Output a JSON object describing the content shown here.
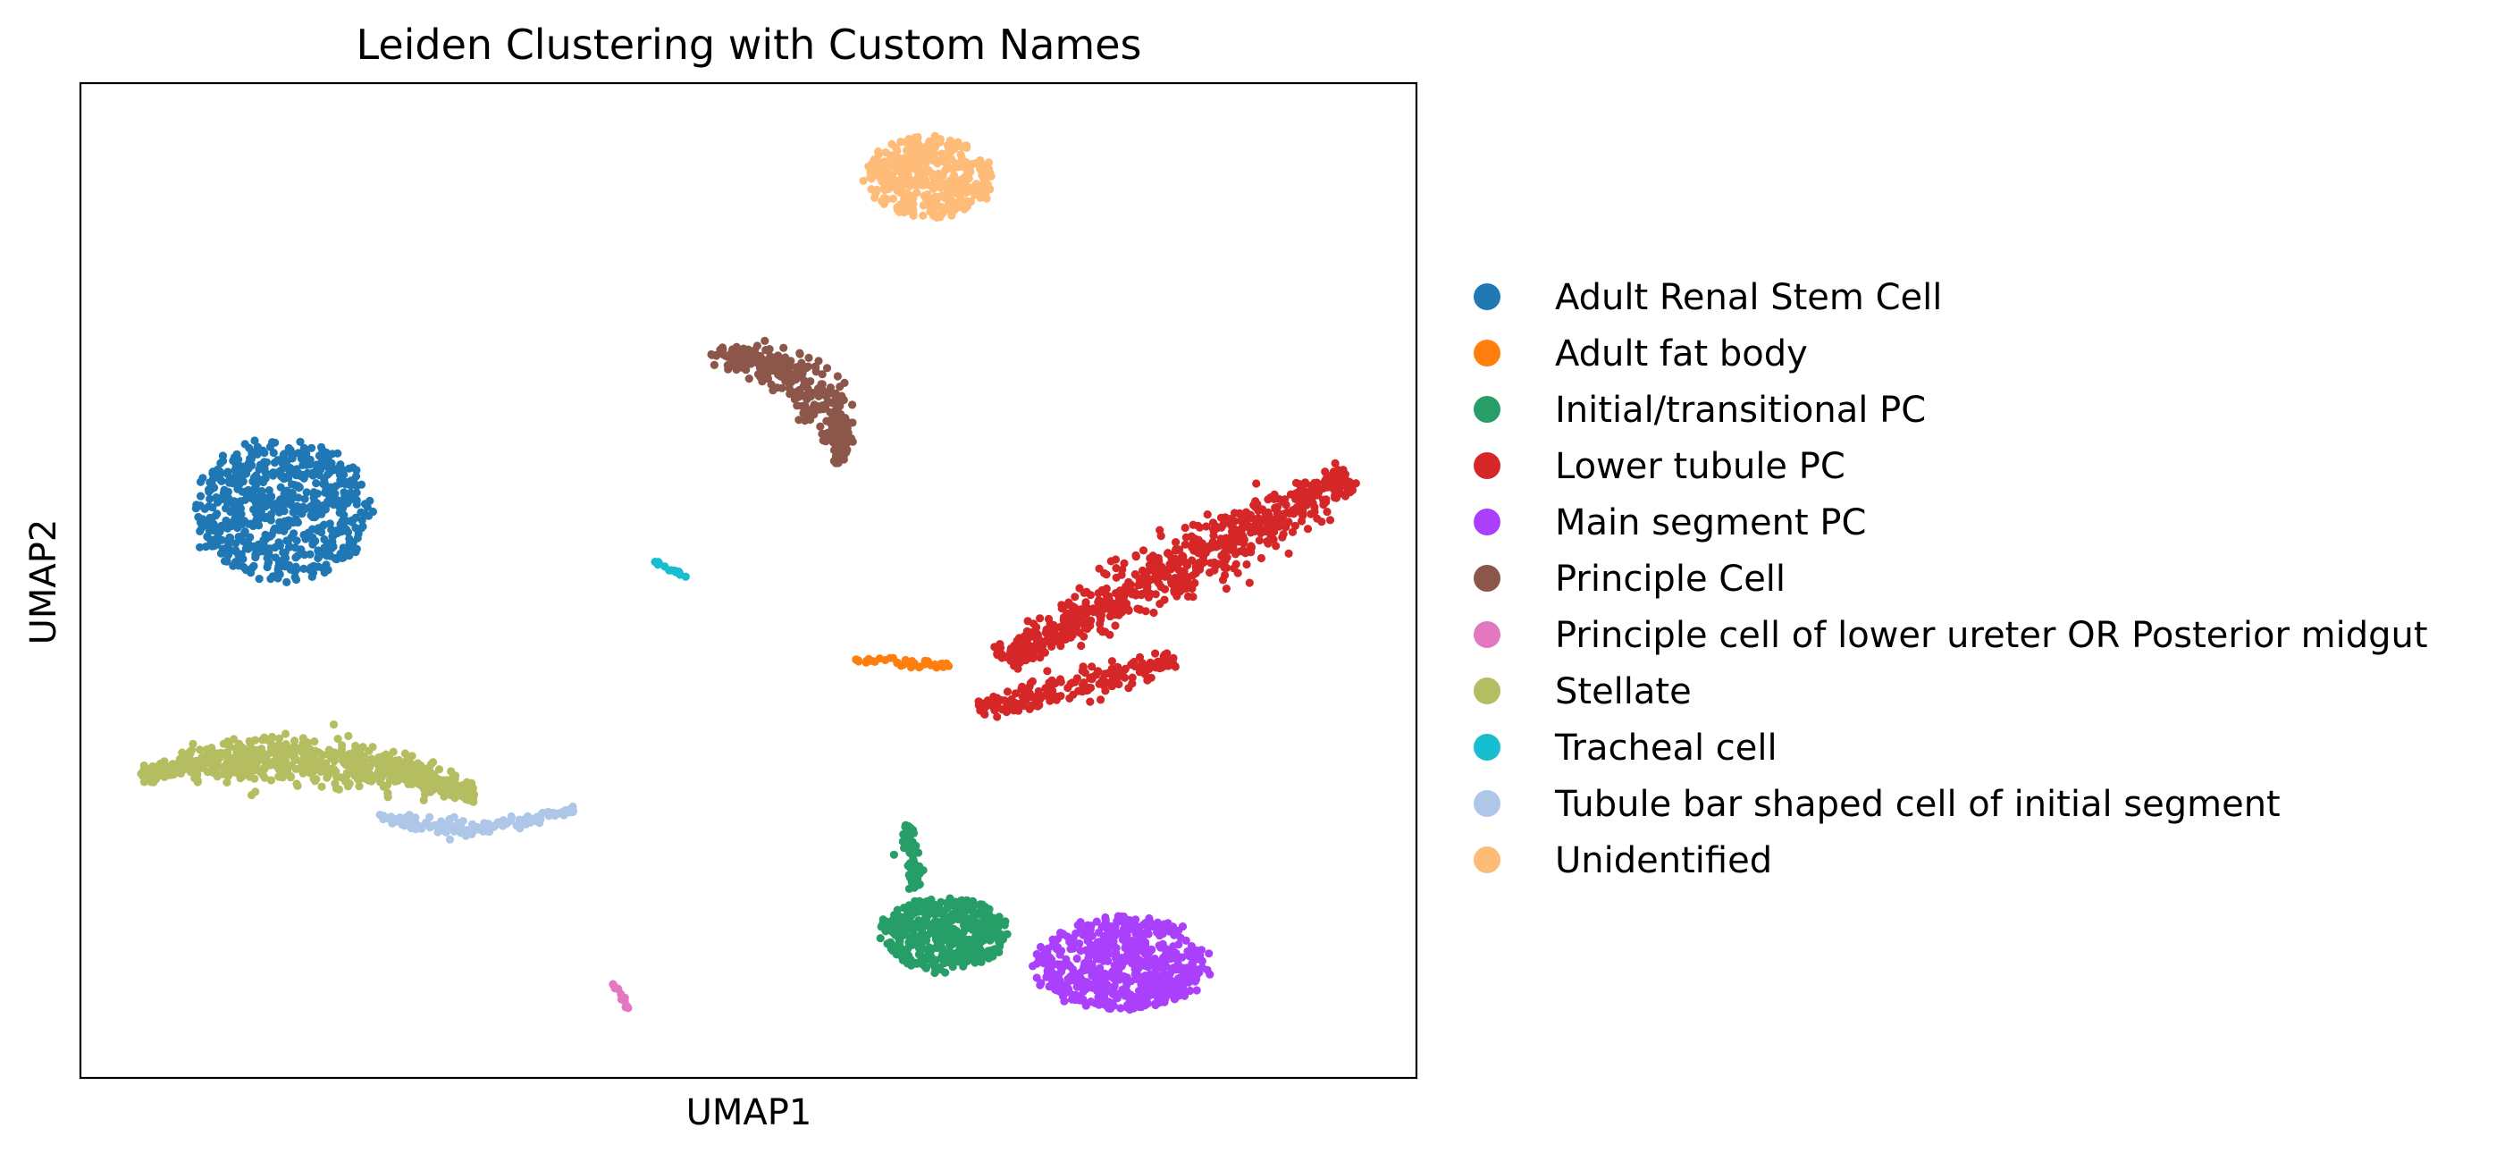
{
  "chart_data": {
    "type": "scatter",
    "title": "Leiden Clustering with Custom Names",
    "xlabel": "UMAP1",
    "ylabel": "UMAP2",
    "xlim": [
      0,
      100
    ],
    "ylim": [
      0,
      100
    ],
    "ticks_shown": false,
    "grid": false,
    "legend_position": "outside right",
    "series": [
      {
        "name": "Adult Renal Stem Cell",
        "color": "#1f77b4",
        "clusters": [
          {
            "shape": "blob",
            "cx": 15,
            "cy": 57,
            "rx": 7,
            "ry": 7.5,
            "n": 650
          }
        ]
      },
      {
        "name": "Adult fat body",
        "color": "#ff7f0e",
        "clusters": [
          {
            "shape": "line",
            "x0": 58,
            "y0": 42,
            "x1": 65,
            "y1": 41.5,
            "spread": 0.5,
            "n": 45
          }
        ]
      },
      {
        "name": "Initial/transitional PC",
        "color": "#279e68",
        "clusters": [
          {
            "shape": "blob",
            "cx": 64.5,
            "cy": 14.5,
            "rx": 5,
            "ry": 4,
            "n": 430
          },
          {
            "shape": "line",
            "x0": 62.5,
            "y0": 19,
            "x1": 62,
            "y1": 25.5,
            "spread": 0.7,
            "n": 70
          }
        ]
      },
      {
        "name": "Lower tubule PC",
        "color": "#d62728",
        "clusters": [
          {
            "shape": "line",
            "x0": 69,
            "y0": 42,
            "x1": 95,
            "y1": 60.5,
            "spread": 2.6,
            "n": 750
          },
          {
            "shape": "line",
            "x0": 67,
            "y0": 37,
            "x1": 82,
            "y1": 42,
            "spread": 1.6,
            "n": 200
          }
        ]
      },
      {
        "name": "Main segment PC",
        "color": "#aa40fc",
        "clusters": [
          {
            "shape": "blob",
            "cx": 78,
            "cy": 11.5,
            "rx": 7,
            "ry": 5,
            "n": 620
          }
        ]
      },
      {
        "name": "Principle Cell",
        "color": "#8c564b",
        "clusters": [
          {
            "shape": "arc",
            "x0": 47.5,
            "y0": 73,
            "x1": 57,
            "y1": 62,
            "bend": 3,
            "spread": 2.1,
            "n": 330
          }
        ]
      },
      {
        "name": "Principle cell of lower ureter OR Posterior midgut",
        "color": "#e377c2",
        "clusters": [
          {
            "shape": "line",
            "x0": 40,
            "y0": 9.5,
            "x1": 41,
            "y1": 7,
            "spread": 0.3,
            "n": 14
          }
        ]
      },
      {
        "name": "Stellate",
        "color": "#b5bd61",
        "clusters": [
          {
            "shape": "arc",
            "x0": 4.5,
            "y0": 30.5,
            "x1": 29.5,
            "y1": 28.5,
            "bend": 2.5,
            "spread": 2.1,
            "n": 720
          }
        ]
      },
      {
        "name": "Tracheal cell",
        "color": "#17becf",
        "clusters": [
          {
            "shape": "line",
            "x0": 43,
            "y0": 52,
            "x1": 45.3,
            "y1": 50.3,
            "spread": 0.25,
            "n": 16
          }
        ]
      },
      {
        "name": "Tubule bar shaped cell of initial segment",
        "color": "#aec7e8",
        "clusters": [
          {
            "shape": "arc",
            "x0": 22,
            "y0": 26.5,
            "x1": 37,
            "y1": 27,
            "bend": -1.6,
            "spread": 0.8,
            "n": 140
          }
        ]
      },
      {
        "name": "Unidentified",
        "color": "#ffbb78",
        "clusters": [
          {
            "shape": "blob",
            "cx": 63.5,
            "cy": 90.5,
            "rx": 5,
            "ry": 4.5,
            "n": 400
          }
        ]
      }
    ]
  }
}
